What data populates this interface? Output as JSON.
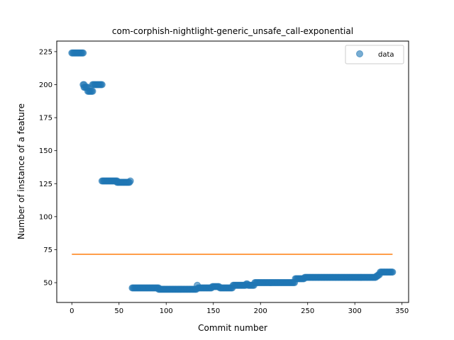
{
  "chart_data": {
    "type": "scatter",
    "title": "com-corphish-nightlight-generic_unsafe_call-exponential",
    "xlabel": "Commit number",
    "ylabel": "Number of instance of a feature",
    "xlim": [
      -16,
      357
    ],
    "ylim": [
      35,
      233
    ],
    "xticks": [
      0,
      50,
      100,
      150,
      200,
      250,
      300,
      350
    ],
    "yticks": [
      50,
      75,
      100,
      125,
      150,
      175,
      200,
      225
    ],
    "grid": false,
    "legend": {
      "placement": "top-right",
      "entries": [
        "data"
      ]
    },
    "colors": {
      "points": "#1f77b4",
      "line": "#ff7f0e"
    },
    "series": [
      {
        "name": "data",
        "kind": "points",
        "segments": [
          {
            "x_start": 0,
            "x_end": 12,
            "y": 224
          },
          {
            "x_start": 12,
            "x_end": 13,
            "y": 200
          },
          {
            "x_start": 13,
            "x_end": 17,
            "y": 198
          },
          {
            "x_start": 17,
            "x_end": 22,
            "y": 195
          },
          {
            "x_start": 22,
            "x_end": 32,
            "y": 200
          },
          {
            "x_start": 32,
            "x_end": 48,
            "y": 127
          },
          {
            "x_start": 48,
            "x_end": 61,
            "y": 126
          },
          {
            "x_start": 62,
            "x_end": 62,
            "y": 127
          },
          {
            "x_start": 64,
            "x_end": 92,
            "y": 46
          },
          {
            "x_start": 92,
            "x_end": 132,
            "y": 45
          },
          {
            "x_start": 133,
            "x_end": 133,
            "y": 48
          },
          {
            "x_start": 134,
            "x_end": 148,
            "y": 46
          },
          {
            "x_start": 149,
            "x_end": 156,
            "y": 47
          },
          {
            "x_start": 157,
            "x_end": 170,
            "y": 46
          },
          {
            "x_start": 171,
            "x_end": 184,
            "y": 48
          },
          {
            "x_start": 185,
            "x_end": 186,
            "y": 49
          },
          {
            "x_start": 187,
            "x_end": 193,
            "y": 48
          },
          {
            "x_start": 194,
            "x_end": 236,
            "y": 50
          },
          {
            "x_start": 237,
            "x_end": 246,
            "y": 53
          },
          {
            "x_start": 247,
            "x_end": 322,
            "y": 54
          },
          {
            "x_start": 323,
            "x_end": 324,
            "y": 55
          },
          {
            "x_start": 325,
            "x_end": 326,
            "y": 56
          },
          {
            "x_start": 327,
            "x_end": 340,
            "y": 58
          }
        ]
      },
      {
        "name": "",
        "kind": "line",
        "x": [
          0,
          340
        ],
        "y": [
          71.5,
          71.5
        ]
      }
    ]
  }
}
